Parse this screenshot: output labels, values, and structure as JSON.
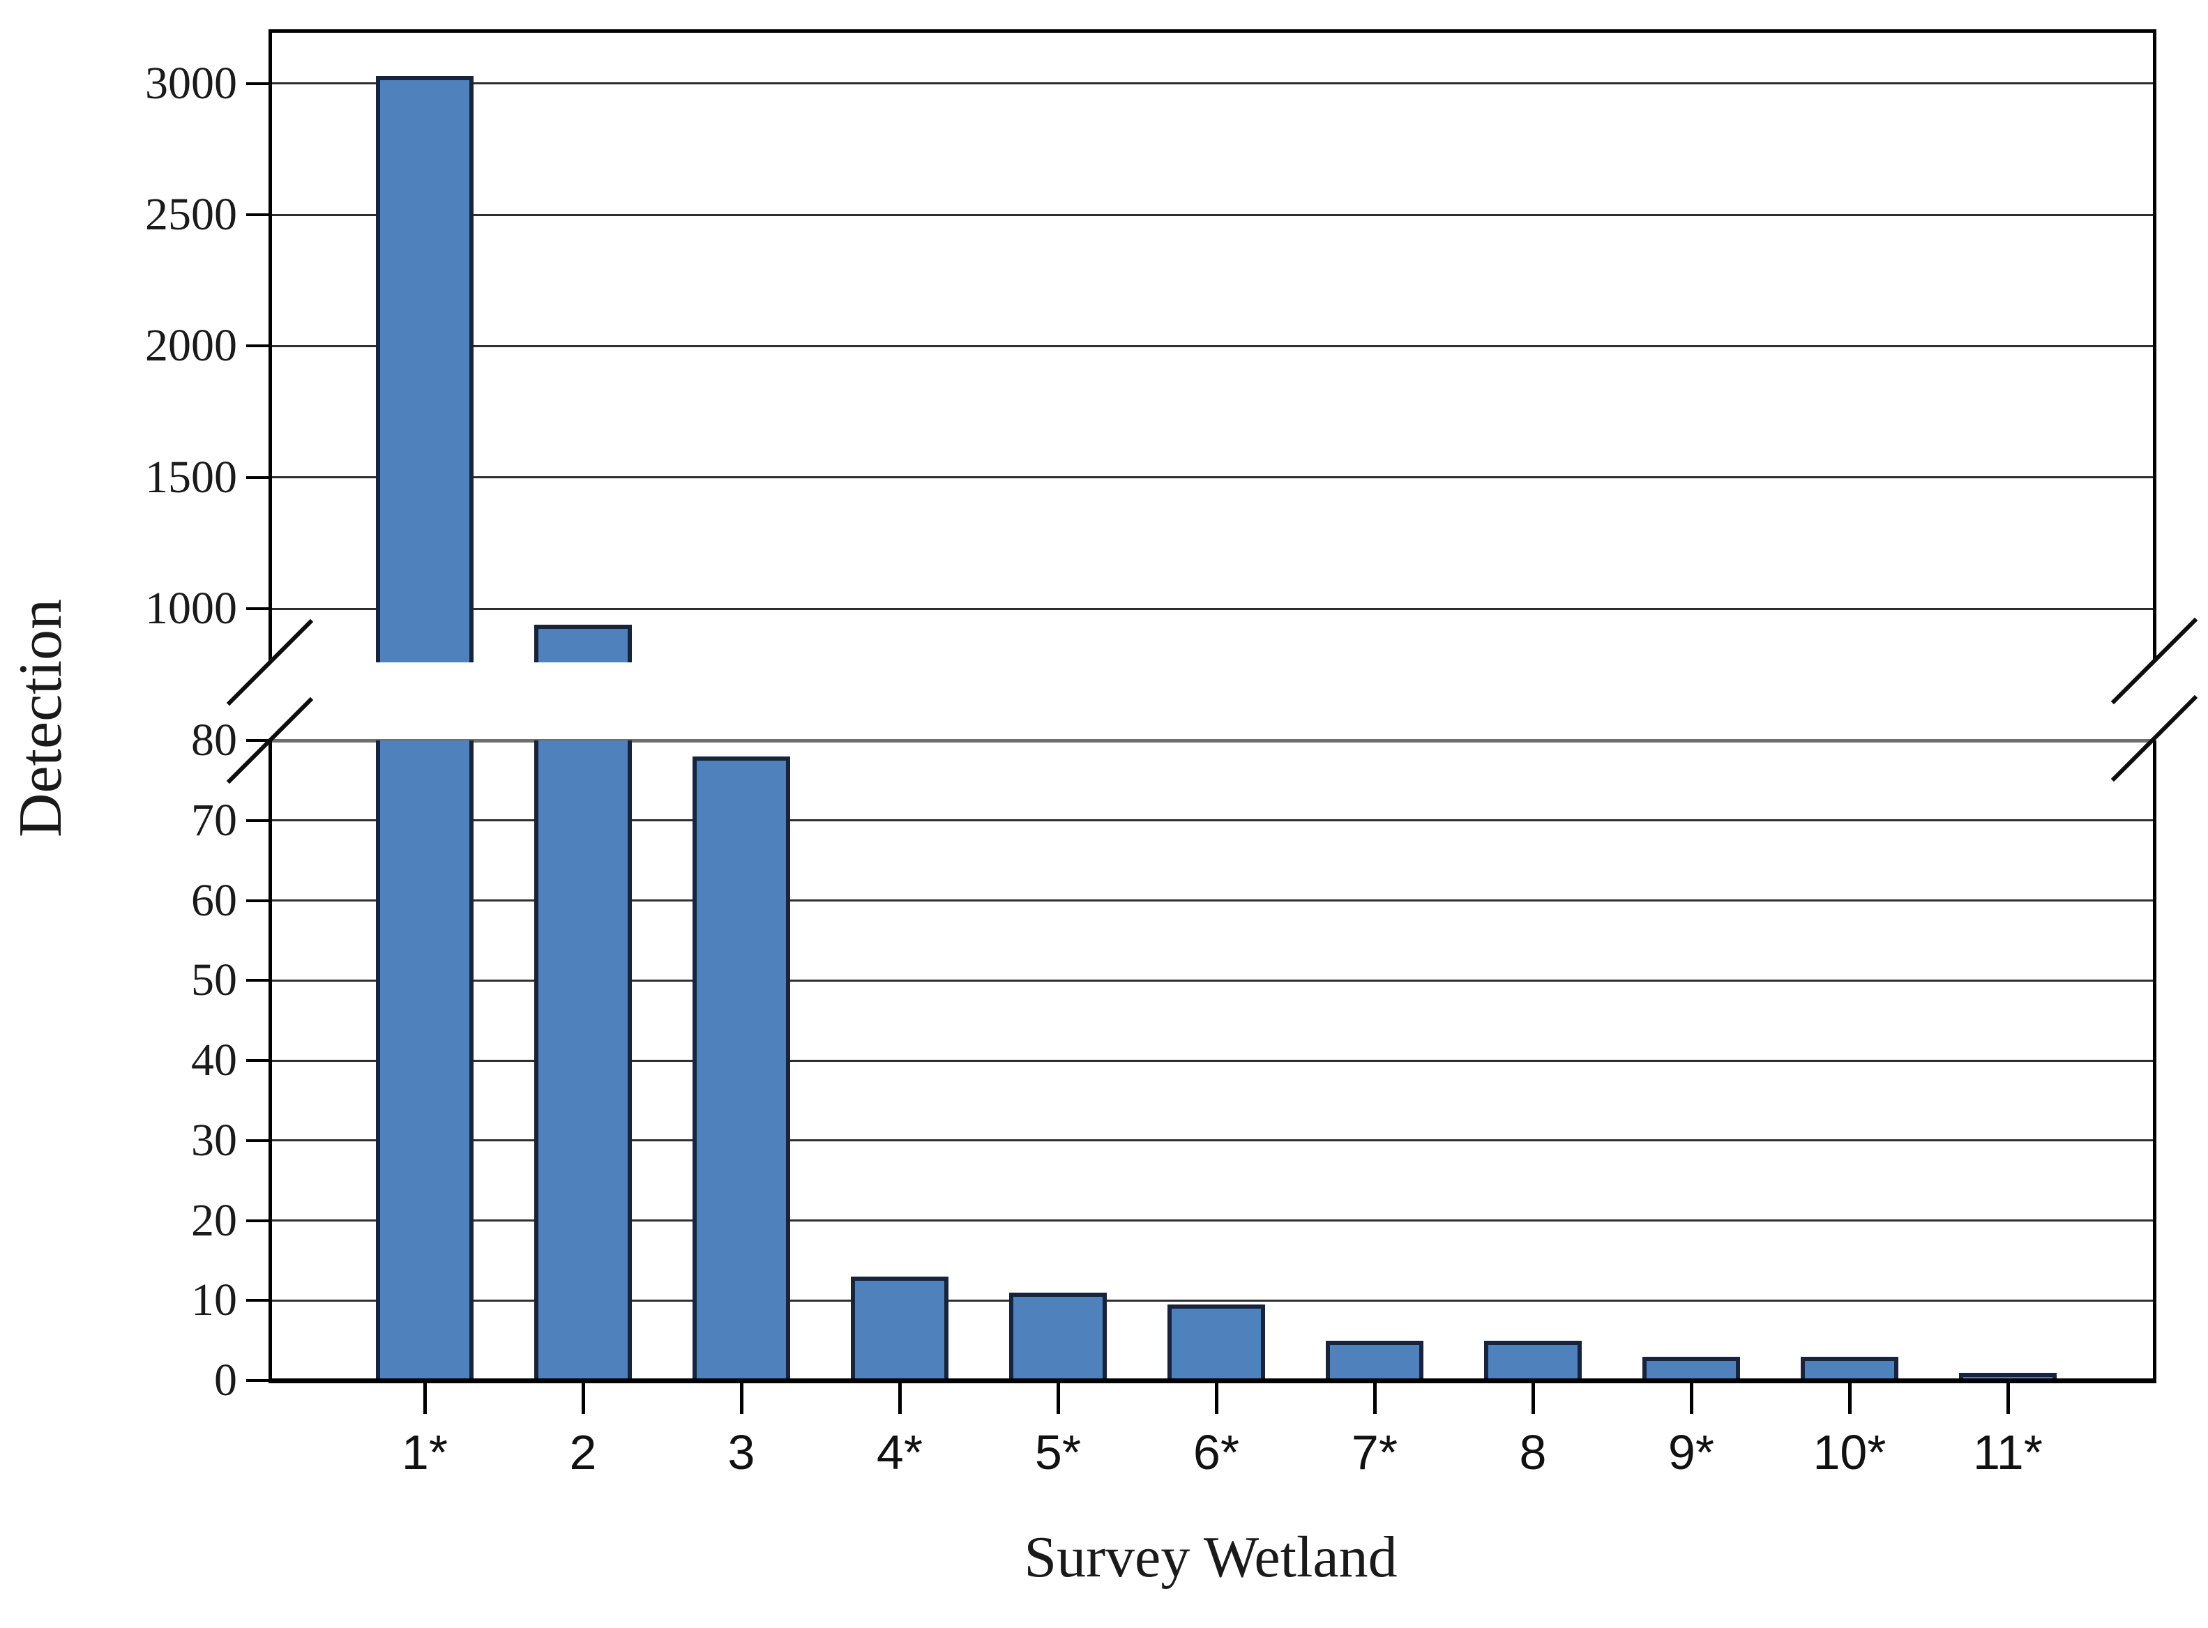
{
  "chart_data": {
    "type": "bar",
    "title": "",
    "xlabel": "Survey Wetland",
    "ylabel": "Detection",
    "categories": [
      "1*",
      "2",
      "3",
      "4*",
      "5*",
      "6*",
      "7*",
      "8",
      "9*",
      "10*",
      "11*"
    ],
    "values": [
      3030,
      940,
      78,
      13,
      11,
      9.5,
      5,
      5,
      3,
      3,
      1
    ],
    "series": [
      {
        "name": "Detection",
        "values": [
          3030,
          940,
          78,
          13,
          11,
          9.5,
          5,
          5,
          3,
          3,
          1
        ]
      }
    ],
    "broken_y_axis": {
      "upper_panel": {
        "ticks": [
          3000,
          2500,
          2000,
          1500,
          1000
        ],
        "range_shown": [
          800,
          3250
        ]
      },
      "lower_panel": {
        "ticks": [
          80,
          70,
          60,
          50,
          40,
          30,
          20,
          10,
          0
        ],
        "range_shown": [
          0,
          80
        ]
      },
      "break_marks": "diagonal slashes on left and right axis between panels"
    },
    "legend": {
      "visible": false
    },
    "grid": {
      "horizontal": true,
      "vertical": false
    },
    "colors": {
      "bar_fill": "#4F81BD",
      "bar_border": "#17243c",
      "gridline": "#2f2f2f",
      "lower_panel_top_line": "#6f6f6f",
      "axis": "#000000",
      "text": "#1a1a1a"
    }
  }
}
